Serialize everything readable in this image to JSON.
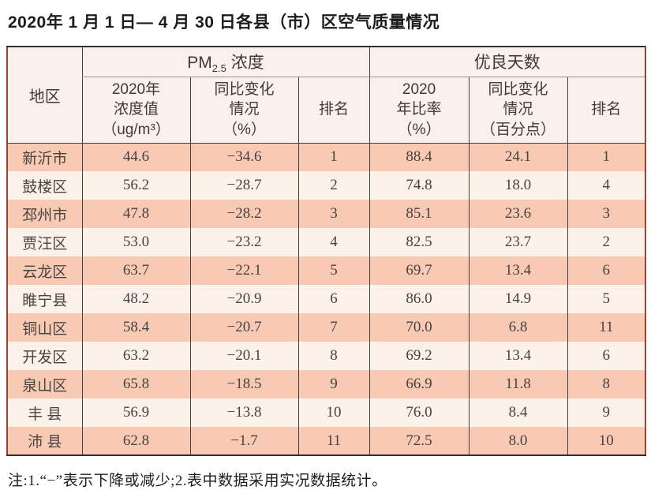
{
  "page": {
    "title": "2020年 1 月 1 日— 4 月 30 日各县（市）区空气质量情况",
    "footnote": "注:1.“−”表示下降或减少;2.表中数据采用实况数据统计。"
  },
  "colors": {
    "row_odd_bg": "#f8cab4",
    "row_even_bg": "#fdf2ea",
    "header_bg": "#f9f1ea",
    "frame_dark": "#332e2b",
    "frame_side": "#a04136",
    "grid_line": "#45403d"
  },
  "table": {
    "header": {
      "region": "地区",
      "pm_group": {
        "prefix": "PM",
        "sub": "2.5",
        "suffix": " 浓度"
      },
      "days_group": "优良天数",
      "columns": [
        "2020年\n浓度值\n（ug/m³）",
        "同比变化\n情况\n（%）",
        "排名",
        "2020\n年比率\n（%）",
        "同比变化\n情况\n（百分点）",
        "排名"
      ]
    },
    "rows": [
      {
        "region": "新沂市",
        "pm_value": "44.6",
        "pm_change": "−34.6",
        "pm_rank": "1",
        "days_rate": "88.4",
        "days_change": "24.1",
        "days_rank": "1"
      },
      {
        "region": "鼓楼区",
        "pm_value": "56.2",
        "pm_change": "−28.7",
        "pm_rank": "2",
        "days_rate": "74.8",
        "days_change": "18.0",
        "days_rank": "4"
      },
      {
        "region": "邳州市",
        "pm_value": "47.8",
        "pm_change": "−28.2",
        "pm_rank": "3",
        "days_rate": "85.1",
        "days_change": "23.6",
        "days_rank": "3"
      },
      {
        "region": "贾汪区",
        "pm_value": "53.0",
        "pm_change": "−23.2",
        "pm_rank": "4",
        "days_rate": "82.5",
        "days_change": "23.7",
        "days_rank": "2"
      },
      {
        "region": "云龙区",
        "pm_value": "63.7",
        "pm_change": "−22.1",
        "pm_rank": "5",
        "days_rate": "69.7",
        "days_change": "13.4",
        "days_rank": "6"
      },
      {
        "region": "睢宁县",
        "pm_value": "48.2",
        "pm_change": "−20.9",
        "pm_rank": "6",
        "days_rate": "86.0",
        "days_change": "14.9",
        "days_rank": "5"
      },
      {
        "region": "铜山区",
        "pm_value": "58.4",
        "pm_change": "−20.7",
        "pm_rank": "7",
        "days_rate": "70.0",
        "days_change": "6.8",
        "days_rank": "11"
      },
      {
        "region": "开发区",
        "pm_value": "63.2",
        "pm_change": "−20.1",
        "pm_rank": "8",
        "days_rate": "69.2",
        "days_change": "13.4",
        "days_rank": "6"
      },
      {
        "region": "泉山区",
        "pm_value": "65.8",
        "pm_change": "−18.5",
        "pm_rank": "9",
        "days_rate": "66.9",
        "days_change": "11.8",
        "days_rank": "8"
      },
      {
        "region": "丰 县",
        "pm_value": "56.9",
        "pm_change": "−13.8",
        "pm_rank": "10",
        "days_rate": "76.0",
        "days_change": "8.4",
        "days_rank": "9"
      },
      {
        "region": "沛 县",
        "pm_value": "62.8",
        "pm_change": "−1.7",
        "pm_rank": "11",
        "days_rate": "72.5",
        "days_change": "8.0",
        "days_rank": "10"
      }
    ]
  }
}
